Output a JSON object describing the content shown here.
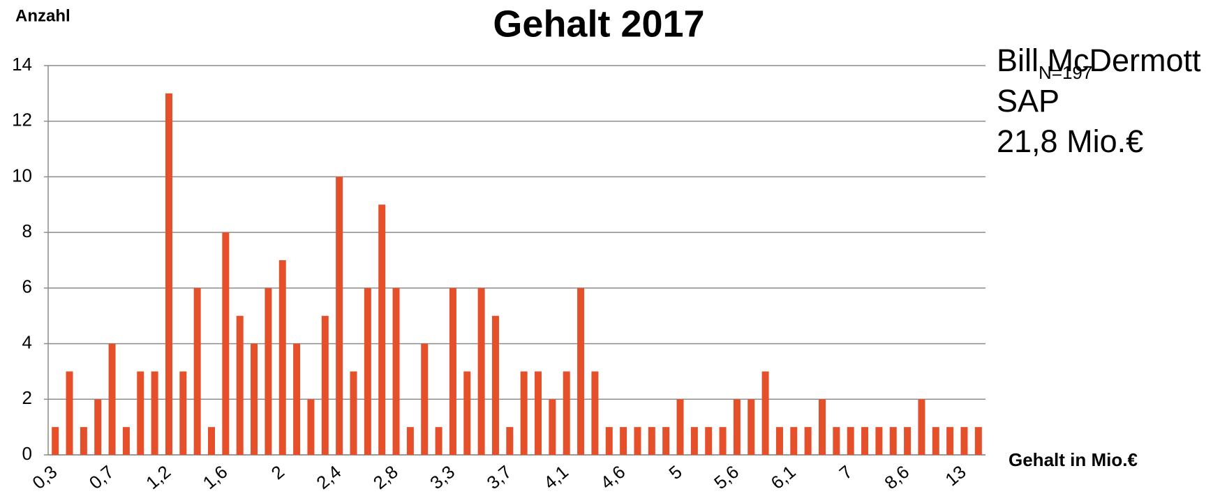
{
  "chart_data": {
    "type": "bar",
    "title": "Gehalt 2017",
    "y_label": "Anzahl",
    "x_label": "Gehalt in Mio.€",
    "annotation_n": "N=197",
    "annotation_lines": [
      "Bill McDermott",
      "SAP",
      "21,8 Mio.€"
    ],
    "color": "#e5502a",
    "grid": true,
    "ylim": [
      0,
      14
    ],
    "yticks": [
      0,
      2,
      4,
      6,
      8,
      10,
      12,
      14
    ],
    "categories": [
      "0,3",
      null,
      null,
      null,
      "0,7",
      null,
      null,
      null,
      "1,2",
      null,
      null,
      null,
      "1,6",
      null,
      null,
      null,
      "2",
      null,
      null,
      null,
      "2,4",
      null,
      null,
      null,
      "2,8",
      null,
      null,
      null,
      "3,3",
      null,
      null,
      null,
      "3,7",
      null,
      null,
      null,
      "4,1",
      null,
      null,
      null,
      "4,6",
      null,
      null,
      null,
      "5",
      null,
      null,
      null,
      "5,6",
      null,
      null,
      null,
      "6,1",
      null,
      null,
      null,
      "7",
      null,
      null,
      null,
      "8,6",
      null,
      null,
      null,
      "13",
      null
    ],
    "values": [
      1,
      3,
      1,
      2,
      4,
      1,
      3,
      3,
      13,
      3,
      6,
      1,
      8,
      5,
      4,
      6,
      7,
      4,
      2,
      5,
      10,
      3,
      6,
      9,
      6,
      1,
      4,
      1,
      6,
      3,
      6,
      5,
      1,
      3,
      3,
      2,
      3,
      6,
      3,
      1,
      1,
      1,
      1,
      1,
      2,
      1,
      1,
      1,
      2,
      2,
      3,
      1,
      1,
      1,
      2,
      1,
      1,
      1,
      1,
      1,
      1,
      2,
      1,
      1,
      1,
      1
    ]
  }
}
